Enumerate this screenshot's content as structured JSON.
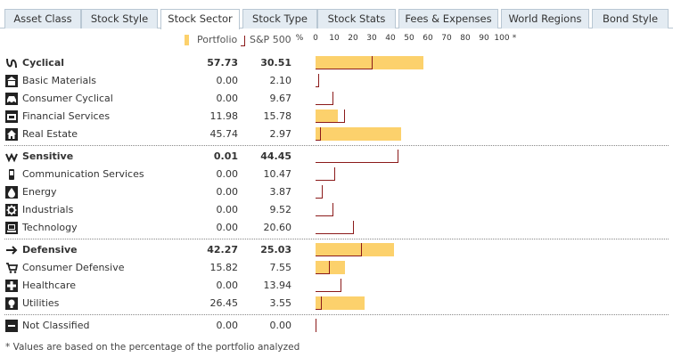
{
  "tabs": [
    {
      "id": "asset-class",
      "label": "Asset Class"
    },
    {
      "id": "stock-style",
      "label": "Stock Style"
    },
    {
      "id": "stock-sector",
      "label": "Stock Sector",
      "active": true
    },
    {
      "id": "stock-type",
      "label": "Stock Type"
    },
    {
      "id": "stock-stats",
      "label": "Stock Stats"
    },
    {
      "id": "fees-expenses",
      "label": "Fees & Expenses"
    },
    {
      "id": "world-regions",
      "label": "World Regions"
    },
    {
      "id": "bond-style",
      "label": "Bond Style"
    }
  ],
  "legend": {
    "portfolio": "Portfolio",
    "benchmark": "S&P 500",
    "portfolio_color": "#fcd16c",
    "benchmark_color": "#8b1a1a"
  },
  "scale": [
    "%",
    "0",
    "10",
    "20",
    "30",
    "40",
    "50",
    "60",
    "70",
    "80",
    "90",
    "100",
    "*"
  ],
  "rows": [
    {
      "id": "cyclical",
      "name": "Cyclical",
      "icon": "cyclical-icon",
      "bold": true,
      "portfolio": 57.73,
      "benchmark": 30.51,
      "portfolio_text": "57.73",
      "benchmark_text": "30.51"
    },
    {
      "id": "basic-materials",
      "name": "Basic Materials",
      "icon": "basic-materials-icon",
      "bold": false,
      "portfolio": 0.0,
      "benchmark": 2.1,
      "portfolio_text": "0.00",
      "benchmark_text": "2.10"
    },
    {
      "id": "consumer-cyclical",
      "name": "Consumer Cyclical",
      "icon": "consumer-cyclical-icon",
      "bold": false,
      "portfolio": 0.0,
      "benchmark": 9.67,
      "portfolio_text": "0.00",
      "benchmark_text": "9.67"
    },
    {
      "id": "financial-services",
      "name": "Financial Services",
      "icon": "financial-services-icon",
      "bold": false,
      "portfolio": 11.98,
      "benchmark": 15.78,
      "portfolio_text": "11.98",
      "benchmark_text": "15.78"
    },
    {
      "id": "real-estate",
      "name": "Real Estate",
      "icon": "real-estate-icon",
      "bold": false,
      "portfolio": 45.74,
      "benchmark": 2.97,
      "portfolio_text": "45.74",
      "benchmark_text": "2.97"
    },
    {
      "id": "sensitive",
      "name": "Sensitive",
      "icon": "sensitive-icon",
      "bold": true,
      "portfolio": 0.01,
      "benchmark": 44.45,
      "portfolio_text": "0.01",
      "benchmark_text": "44.45"
    },
    {
      "id": "communication-services",
      "name": "Communication Services",
      "icon": "communication-services-icon",
      "bold": false,
      "portfolio": 0.0,
      "benchmark": 10.47,
      "portfolio_text": "0.00",
      "benchmark_text": "10.47"
    },
    {
      "id": "energy",
      "name": "Energy",
      "icon": "energy-icon",
      "bold": false,
      "portfolio": 0.0,
      "benchmark": 3.87,
      "portfolio_text": "0.00",
      "benchmark_text": "3.87"
    },
    {
      "id": "industrials",
      "name": "Industrials",
      "icon": "industrials-icon",
      "bold": false,
      "portfolio": 0.0,
      "benchmark": 9.52,
      "portfolio_text": "0.00",
      "benchmark_text": "9.52"
    },
    {
      "id": "technology",
      "name": "Technology",
      "icon": "technology-icon",
      "bold": false,
      "portfolio": 0.0,
      "benchmark": 20.6,
      "portfolio_text": "0.00",
      "benchmark_text": "20.60"
    },
    {
      "id": "defensive",
      "name": "Defensive",
      "icon": "defensive-icon",
      "bold": true,
      "portfolio": 42.27,
      "benchmark": 25.03,
      "portfolio_text": "42.27",
      "benchmark_text": "25.03"
    },
    {
      "id": "consumer-defensive",
      "name": "Consumer Defensive",
      "icon": "consumer-defensive-icon",
      "bold": false,
      "portfolio": 15.82,
      "benchmark": 7.55,
      "portfolio_text": "15.82",
      "benchmark_text": "7.55"
    },
    {
      "id": "healthcare",
      "name": "Healthcare",
      "icon": "healthcare-icon",
      "bold": false,
      "portfolio": 0.0,
      "benchmark": 13.94,
      "portfolio_text": "0.00",
      "benchmark_text": "13.94"
    },
    {
      "id": "utilities",
      "name": "Utilities",
      "icon": "utilities-icon",
      "bold": false,
      "portfolio": 26.45,
      "benchmark": 3.55,
      "portfolio_text": "26.45",
      "benchmark_text": "3.55"
    },
    {
      "id": "not-classified",
      "name": "Not Classified",
      "icon": "not-classified-icon",
      "bold": false,
      "portfolio": 0.0,
      "benchmark": 0.0,
      "portfolio_text": "0.00",
      "benchmark_text": "0.00"
    }
  ],
  "footnote": "* Values are based on the percentage of the portfolio analyzed"
}
